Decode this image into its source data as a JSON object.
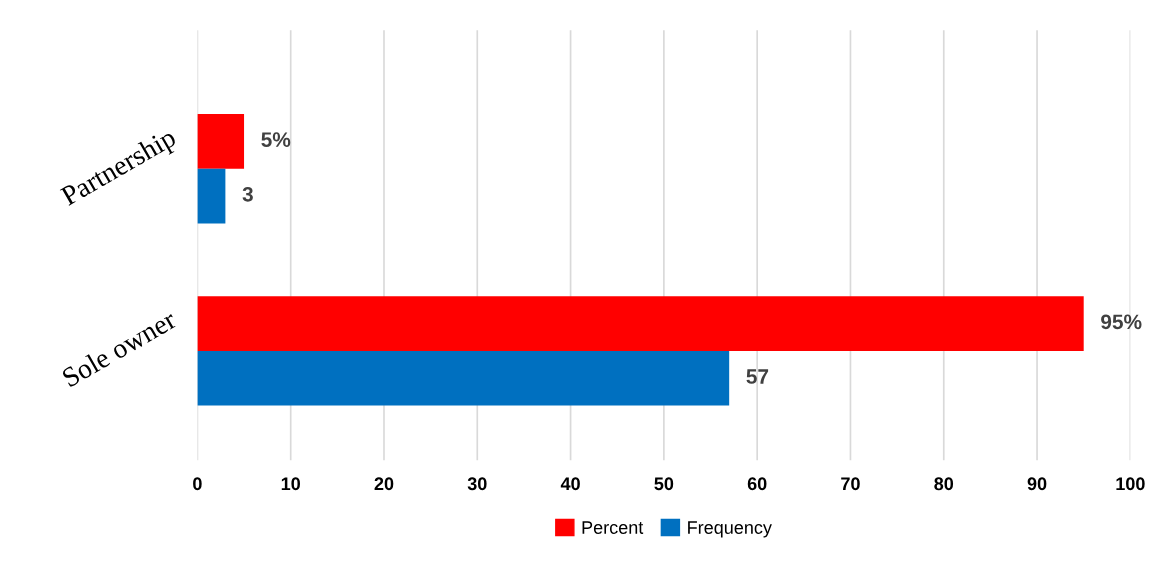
{
  "chart_data": {
    "type": "bar",
    "orientation": "horizontal",
    "categories": [
      "Partnership",
      "Sole owner"
    ],
    "series": [
      {
        "name": "Percent",
        "color": "#ff0000",
        "values": [
          5,
          95
        ],
        "value_labels": [
          "5%",
          "95%"
        ]
      },
      {
        "name": "Frequency",
        "color": "#0070c0",
        "values": [
          3,
          57
        ],
        "value_labels": [
          "3",
          "57"
        ]
      }
    ],
    "xlim": [
      0,
      100
    ],
    "xticks": [
      0,
      10,
      20,
      30,
      40,
      50,
      60,
      70,
      80,
      90,
      100
    ],
    "grid": "x",
    "legend": "bottom"
  }
}
